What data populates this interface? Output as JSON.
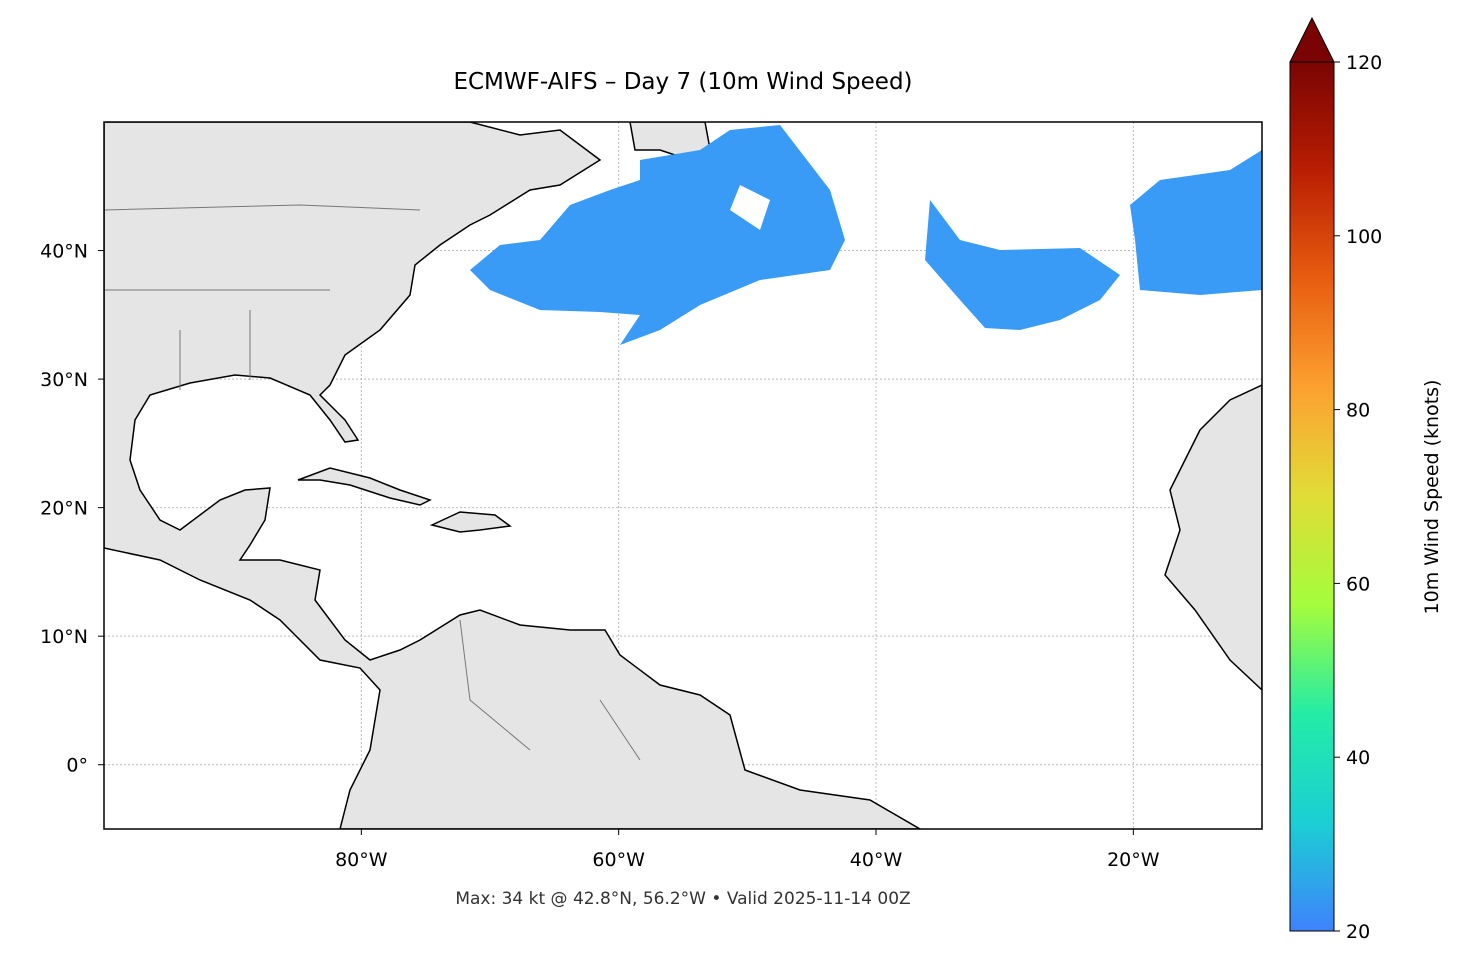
{
  "title": "ECMWF-AIFS – Day 7 (10m Wind Speed)",
  "footer": "Max: 34 kt @ 42.8°N, 56.2°W • Valid 2025-11-14 00Z",
  "map": {
    "xlim": [
      -100,
      -10
    ],
    "ylim": [
      -5,
      50
    ],
    "grid": true,
    "xticks": [
      {
        "value": -80,
        "label": "80°W"
      },
      {
        "value": -60,
        "label": "60°W"
      },
      {
        "value": -40,
        "label": "40°W"
      },
      {
        "value": -20,
        "label": "20°W"
      }
    ],
    "yticks": [
      {
        "value": 0,
        "label": "0°"
      },
      {
        "value": 10,
        "label": "10°N"
      },
      {
        "value": 20,
        "label": "20°N"
      },
      {
        "value": 30,
        "label": "30°N"
      },
      {
        "value": 40,
        "label": "40°N"
      }
    ]
  },
  "colorbar": {
    "label": "10m Wind Speed (knots)",
    "lim": [
      20,
      120
    ],
    "ticks": [
      20,
      40,
      60,
      80,
      100,
      120
    ],
    "colors": [
      "#3e82fb",
      "#1bcfd4",
      "#24eca6",
      "#a4fc3c",
      "#e1dd37",
      "#fca130",
      "#e85d10",
      "#b91e02",
      "#7a0403"
    ]
  }
}
